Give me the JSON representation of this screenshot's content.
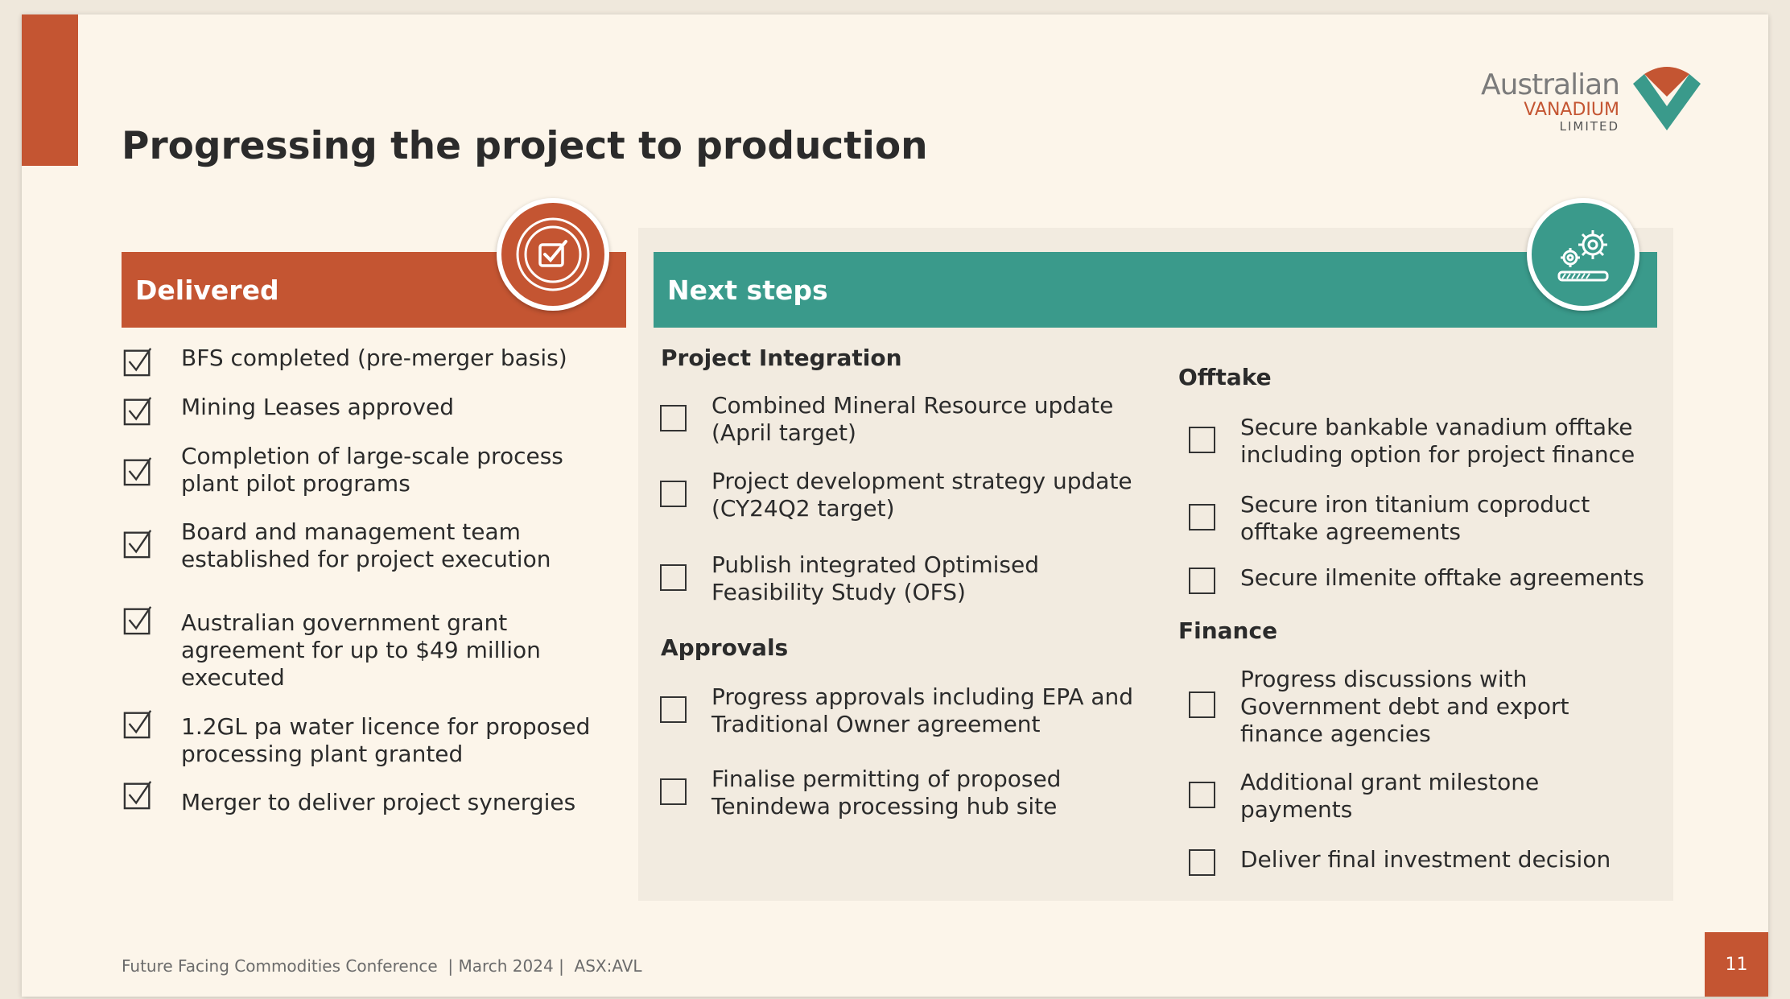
{
  "slide": {
    "title": "Progressing the project to production",
    "logo": {
      "line1": "Australian",
      "line2": "VANADIUM",
      "line3": "LIMITED"
    },
    "delivered": {
      "header": "Delivered",
      "items": [
        "BFS completed (pre-merger basis)",
        "Mining Leases approved",
        "Completion of large-scale process plant pilot programs",
        "Board and management team established for project execution",
        "Australian government grant agreement for up to $49 million executed",
        "1.2GL pa water licence for proposed processing plant granted",
        "Merger to deliver project synergies"
      ]
    },
    "next_steps": {
      "header": "Next steps",
      "project_integration": {
        "title": "Project Integration",
        "items": [
          "Combined Mineral Resource update (April target)",
          "Project development strategy update (CY24Q2 target)",
          "Publish integrated Optimised Feasibility Study (OFS)"
        ]
      },
      "approvals": {
        "title": "Approvals",
        "items": [
          "Progress approvals including EPA and Traditional Owner agreement",
          "Finalise permitting of proposed Tenindewa processing hub site"
        ]
      },
      "offtake": {
        "title": "Offtake",
        "items": [
          "Secure bankable vanadium offtake including option for project finance",
          "Secure iron titanium coproduct offtake agreements",
          "Secure ilmenite offtake agreements"
        ]
      },
      "finance": {
        "title": "Finance",
        "items": [
          "Progress discussions with Government debt and export finance agencies",
          "Additional grant milestone payments",
          "Deliver final investment decision"
        ]
      }
    },
    "footer": "Future Facing Commodities Conference  | March 2024 |  ASX:AVL",
    "page_number": "11",
    "colors": {
      "accent_red": "#c45532",
      "accent_teal": "#3a9a8b",
      "background": "#fcf5ea"
    }
  }
}
